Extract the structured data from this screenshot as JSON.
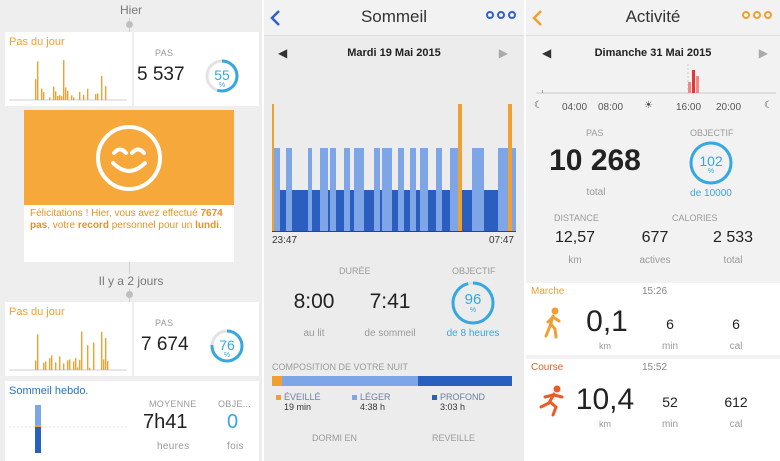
{
  "panel1": {
    "day_yesterday": "Hier",
    "day_2days": "Il y a 2 jours",
    "card1": {
      "title": "Pas du jour",
      "label": "PAS",
      "value": "5 537",
      "pct": "55",
      "pct_unit": "%"
    },
    "congrats": {
      "t1": "Félicitations ! Hier, vous avez effectué ",
      "t2": "7674 pas",
      "t3": ", votre ",
      "t4": "record",
      "t5": " personnel pour un ",
      "t6": "lundi",
      "t7": "."
    },
    "card2": {
      "title": "Pas du jour",
      "label": "PAS",
      "value": "7 674",
      "pct": "76",
      "pct_unit": "%"
    },
    "card3": {
      "title": "Sommeil hebdo.",
      "avg_label": "MOYENNE",
      "avg_value": "7h41",
      "avg_unit": "heures",
      "obj_label": "OBJE...",
      "obj_value": "0",
      "obj_unit": "fois"
    },
    "colors": {
      "accent": "#f0a030",
      "ring": "#35a8e0"
    }
  },
  "panel2": {
    "title": "Sommeil",
    "date": "Mardi 19 Mai 2015",
    "start_time": "23:47",
    "end_time": "07:47",
    "duree_label": "DURÉE",
    "objectif_label": "OBJECTIF",
    "au_lit_value": "8:00",
    "au_lit_label": "au lit",
    "sommeil_value": "7:41",
    "sommeil_label": "de sommeil",
    "objectif_pct": "96",
    "objectif_unit": "%",
    "objectif_sub": "de 8 heures",
    "composition_label": "COMPOSITION DE VOTRE NUIT",
    "legend": [
      {
        "label": "ÉVEILLÉ",
        "value": "19 min",
        "color": "#f0a030",
        "fraction": 0.04
      },
      {
        "label": "LÉGER",
        "value": "4:38 h",
        "color": "#7ea6e6",
        "fraction": 0.57
      },
      {
        "label": "PROFOND",
        "value": "3:03 h",
        "color": "#2a5fc0",
        "fraction": 0.39
      }
    ],
    "dormi_label": "DORMI EN",
    "reveille_label": "REVEILLE",
    "colors": {
      "awake": "#f0a030",
      "light": "#7ea6e6",
      "deep": "#2a5fc0",
      "accent": "#2f5fd0"
    }
  },
  "panel3": {
    "title": "Activité",
    "date": "Dimanche 31 Mai 2015",
    "timeline_labels": [
      "04:00",
      "08:00",
      "16:00",
      "20:00"
    ],
    "pas_label": "PAS",
    "pas_value": "10 268",
    "pas_sub": "total",
    "objectif_label": "OBJECTIF",
    "objectif_pct": "102",
    "objectif_unit": "%",
    "objectif_sub": "de 10000",
    "distance_label": "DISTANCE",
    "calories_label": "CALORIES",
    "distance_value": "12,57",
    "distance_unit": "km",
    "actives_value": "677",
    "actives_label": "actives",
    "total_value": "2 533",
    "total_label": "total",
    "activities": [
      {
        "name": "Marche",
        "time": "15:26",
        "distance": "0,1",
        "dist_unit": "km",
        "minutes": "6",
        "min_unit": "min",
        "cal": "6",
        "cal_unit": "cal"
      },
      {
        "name": "Course",
        "time": "15:52",
        "distance": "10,4",
        "dist_unit": "km",
        "minutes": "52",
        "min_unit": "min",
        "cal": "612",
        "cal_unit": "cal"
      }
    ],
    "colors": {
      "accent": "#f0a030",
      "ring": "#35a8e0",
      "run": "#ee5a24"
    }
  }
}
